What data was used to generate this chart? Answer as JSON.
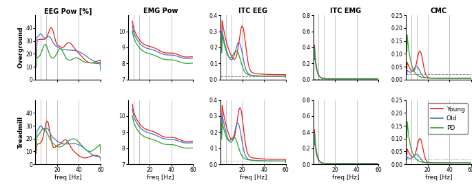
{
  "title_row": [
    "EEG Pow [%]",
    "EMG Pow",
    "ITC EEG",
    "ITC EMG",
    "CMC"
  ],
  "row_labels": [
    "Overground",
    "Treadmill"
  ],
  "legend_labels": [
    "Young",
    "Old",
    "PD"
  ],
  "colors": [
    "#e81a1a",
    "#4472c4",
    "#2ca02c"
  ],
  "xlabel": "freq [Hz]",
  "xmax": 60,
  "vlines": [
    5,
    10,
    20,
    40
  ],
  "subplot_configs": [
    {
      "ylim": [
        0,
        50
      ],
      "yticks": [
        0,
        10,
        20,
        30,
        40
      ],
      "dashed_line": null
    },
    {
      "ylim": [
        7,
        11
      ],
      "yticks": [
        7,
        8,
        9,
        10
      ],
      "dashed_line": null
    },
    {
      "ylim": [
        0,
        0.4
      ],
      "yticks": [
        0,
        0.1,
        0.2,
        0.3,
        0.4
      ],
      "dashed_line": 0.02
    },
    {
      "ylim": [
        0,
        0.8
      ],
      "yticks": [
        0,
        0.2,
        0.4,
        0.6,
        0.8
      ],
      "dashed_line": 0.01
    },
    {
      "ylim": [
        0,
        0.25
      ],
      "yticks": [
        0,
        0.05,
        0.1,
        0.15,
        0.2,
        0.25
      ],
      "dashed_line": 0.02
    }
  ]
}
